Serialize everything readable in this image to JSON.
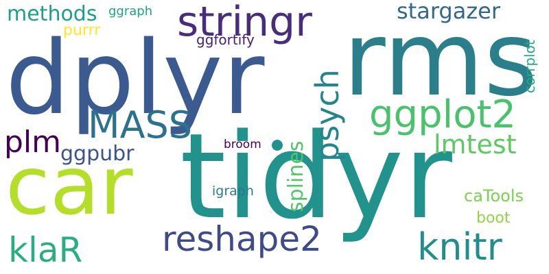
{
  "words": {
    "dplyr": {
      "text": "dplyr",
      "color": "#3b5a8f"
    },
    "rms": {
      "text": "rms",
      "color": "#2a7f8a"
    },
    "tidyr": {
      "text": "tidyr",
      "color": "#21928c"
    },
    "car": {
      "text": "car",
      "color": "#b5de2b"
    },
    "stringr": {
      "text": "stringr",
      "color": "#472d7b"
    },
    "ggplot2": {
      "text": "ggplot2",
      "color": "#4ac16d"
    },
    "mass": {
      "text": "MASS",
      "color": "#2c728e"
    },
    "reshape2": {
      "text": "reshape2",
      "color": "#3e4a89"
    },
    "knitr": {
      "text": "knitr",
      "color": "#228d8d"
    },
    "klar": {
      "text": "klaR",
      "color": "#29af7f"
    },
    "plm": {
      "text": "plm",
      "color": "#440154"
    },
    "lmtest": {
      "text": "lmtest",
      "color": "#5ec962"
    },
    "stargazer": {
      "text": "stargazer",
      "color": "#31688e"
    },
    "methods": {
      "text": "methods",
      "color": "#1f9e89"
    },
    "ggpubr": {
      "text": "ggpubr",
      "color": "#3b528b"
    },
    "catools": {
      "text": "caTools",
      "color": "#7ad151"
    },
    "boot": {
      "text": "boot",
      "color": "#8fd744"
    },
    "purrr": {
      "text": "purrr",
      "color": "#fde725"
    },
    "ggraph": {
      "text": "ggraph",
      "color": "#20a486"
    },
    "ggfortify": {
      "text": "ggfortify",
      "color": "#481f70"
    },
    "broom": {
      "text": "broom",
      "color": "#440154"
    },
    "igraph": {
      "text": "igraph",
      "color": "#287c8e"
    },
    "psych": {
      "text": "psych",
      "color": "#25858e"
    },
    "splines": {
      "text": "splines",
      "color": "#52c569"
    },
    "corrplot": {
      "text": "corrplot",
      "color": "#25ab82"
    }
  }
}
